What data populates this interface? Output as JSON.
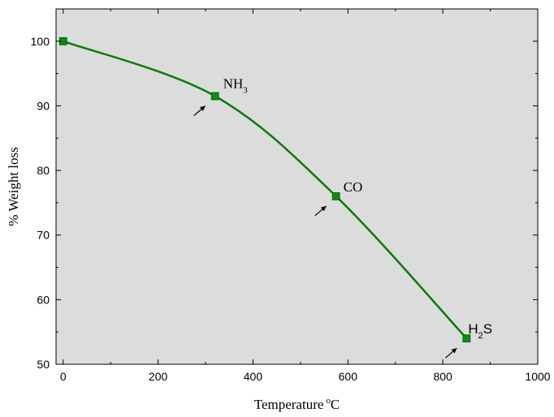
{
  "chart_data": {
    "type": "line",
    "title": "",
    "xlabel": "Temperature",
    "xlabel_sup": "o",
    "xlabel_unit": "C",
    "ylabel": "% Weight loss",
    "xlim": [
      -15,
      1000
    ],
    "ylim": [
      50,
      105
    ],
    "x_ticks": [
      0,
      200,
      400,
      600,
      800,
      1000
    ],
    "y_ticks": [
      50,
      60,
      70,
      80,
      90,
      100
    ],
    "x_tick_labels": [
      "0",
      "200",
      "400",
      "600",
      "800",
      "1000"
    ],
    "y_tick_labels": [
      "50",
      "60",
      "70",
      "80",
      "90",
      "100"
    ],
    "grid": false,
    "background": "#dcdcdc",
    "line_color": "#0a7a0a",
    "marker_color": "#0f8a0f",
    "series": [
      {
        "x": [
          0,
          320,
          575,
          850
        ],
        "y": [
          100,
          91.5,
          76,
          54
        ]
      }
    ],
    "annotations": [
      {
        "x": 320,
        "y": 91.5,
        "text": "NH",
        "sub": "3"
      },
      {
        "x": 575,
        "y": 76,
        "text": "CO",
        "sub": ""
      },
      {
        "x": 850,
        "y": 54,
        "text": "H",
        "sub": "2",
        "tail": "S"
      }
    ]
  }
}
